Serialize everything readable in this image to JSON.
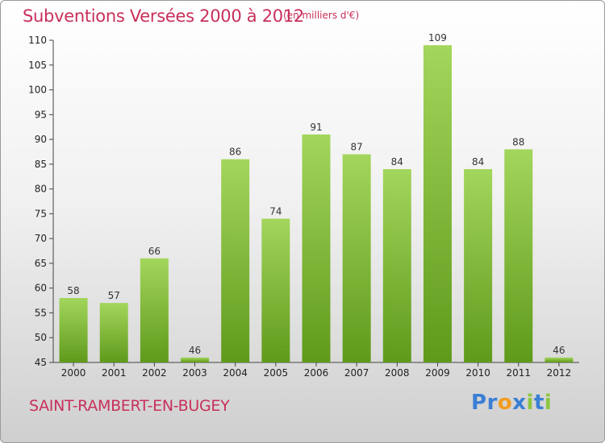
{
  "title": "Subventions Versées 2000 à 2012",
  "unit_note": "(en milliers d'€)",
  "municipality": "SAINT-RAMBERT-EN-BUGEY",
  "logo": {
    "text": "Proxiti",
    "letters": [
      "P",
      "r",
      "o",
      "x",
      "i",
      "t",
      "i"
    ],
    "colors": [
      "#3a7fd5",
      "#3a7fd5",
      "#f39c1f",
      "#3a7fd5",
      "#8cc63f",
      "#3a7fd5",
      "#8cc63f"
    ]
  },
  "colors": {
    "bar_light": "#a3d65c",
    "bar_dark": "#5f9a1b",
    "title": "#c8305a"
  },
  "chart_data": {
    "type": "bar",
    "categories": [
      "2000",
      "2001",
      "2002",
      "2003",
      "2004",
      "2005",
      "2006",
      "2007",
      "2008",
      "2009",
      "2010",
      "2011",
      "2012"
    ],
    "values": [
      58,
      57,
      66,
      46,
      86,
      74,
      91,
      87,
      84,
      109,
      84,
      88,
      46
    ],
    "ylim": [
      45,
      110
    ],
    "yticks": [
      45,
      50,
      55,
      60,
      65,
      70,
      75,
      80,
      85,
      90,
      95,
      100,
      105,
      110
    ],
    "grid": false,
    "data_labels": true
  }
}
